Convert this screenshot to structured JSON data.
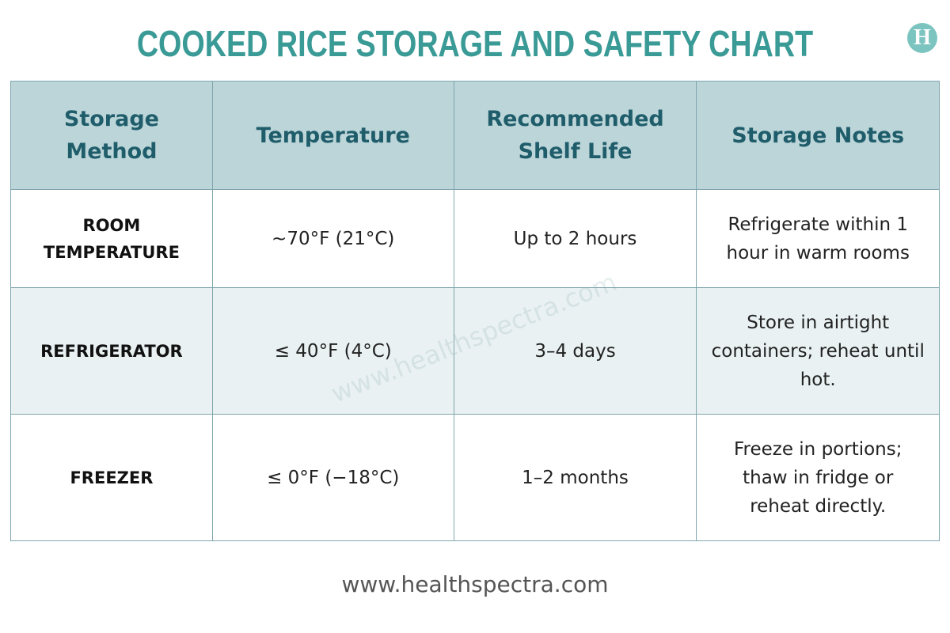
{
  "header": {
    "title": "COOKED RICE STORAGE AND SAFETY CHART",
    "logo": "H"
  },
  "table": {
    "columns": [
      "Storage Method",
      "Temperature",
      "Recommended Shelf Life",
      "Storage Notes"
    ],
    "rows": [
      [
        "ROOM TEMPERATURE",
        "~70°F (21°C)",
        "Up to 2 hours",
        "Refrigerate within 1 hour in warm rooms"
      ],
      [
        "REFRIGERATOR",
        "≤ 40°F (4°C)",
        "3–4 days",
        "Store in airtight containers; reheat until hot."
      ],
      [
        "FREEZER",
        "≤ 0°F (−18°C)",
        "1–2 months",
        "Freeze in portions; thaw in fridge or reheat directly."
      ]
    ]
  },
  "watermark": "www.healthspectra.com",
  "footer": {
    "url": "www.healthspectra.com"
  }
}
